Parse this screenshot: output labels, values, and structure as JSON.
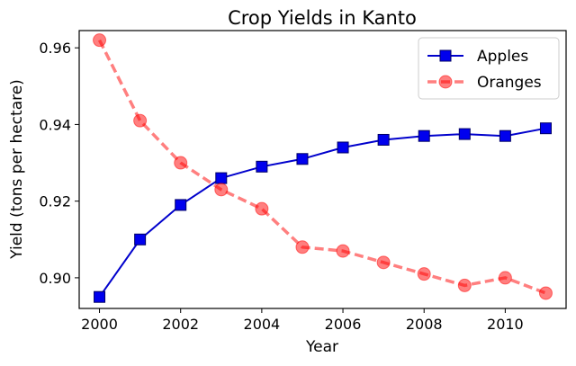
{
  "chart_data": {
    "type": "line",
    "title": "Crop Yields in Kanto",
    "xlabel": "Year",
    "ylabel": "Yield (tons per hectare)",
    "x": [
      2000,
      2001,
      2002,
      2003,
      2004,
      2005,
      2006,
      2007,
      2008,
      2009,
      2010,
      2011
    ],
    "xlim": [
      1999.5,
      2011.5
    ],
    "ylim": [
      0.892,
      0.9645
    ],
    "x_ticks": [
      "2000",
      "2002",
      "2004",
      "2006",
      "2008",
      "2010"
    ],
    "y_ticks": [
      "0.90",
      "0.92",
      "0.94",
      "0.96"
    ],
    "grid": false,
    "legend_position": "top-right",
    "series": [
      {
        "name": "Apples",
        "values": [
          0.895,
          0.91,
          0.919,
          0.926,
          0.929,
          0.931,
          0.934,
          0.936,
          0.937,
          0.9375,
          0.937,
          0.939
        ],
        "color": "#0000cc",
        "marker": "square",
        "line_style": "solid"
      },
      {
        "name": "Oranges",
        "values": [
          0.962,
          0.941,
          0.93,
          0.923,
          0.918,
          0.908,
          0.907,
          0.904,
          0.901,
          0.898,
          0.9,
          0.896
        ],
        "color": "#ff0000",
        "marker": "circle",
        "line_style": "dashed"
      }
    ]
  }
}
